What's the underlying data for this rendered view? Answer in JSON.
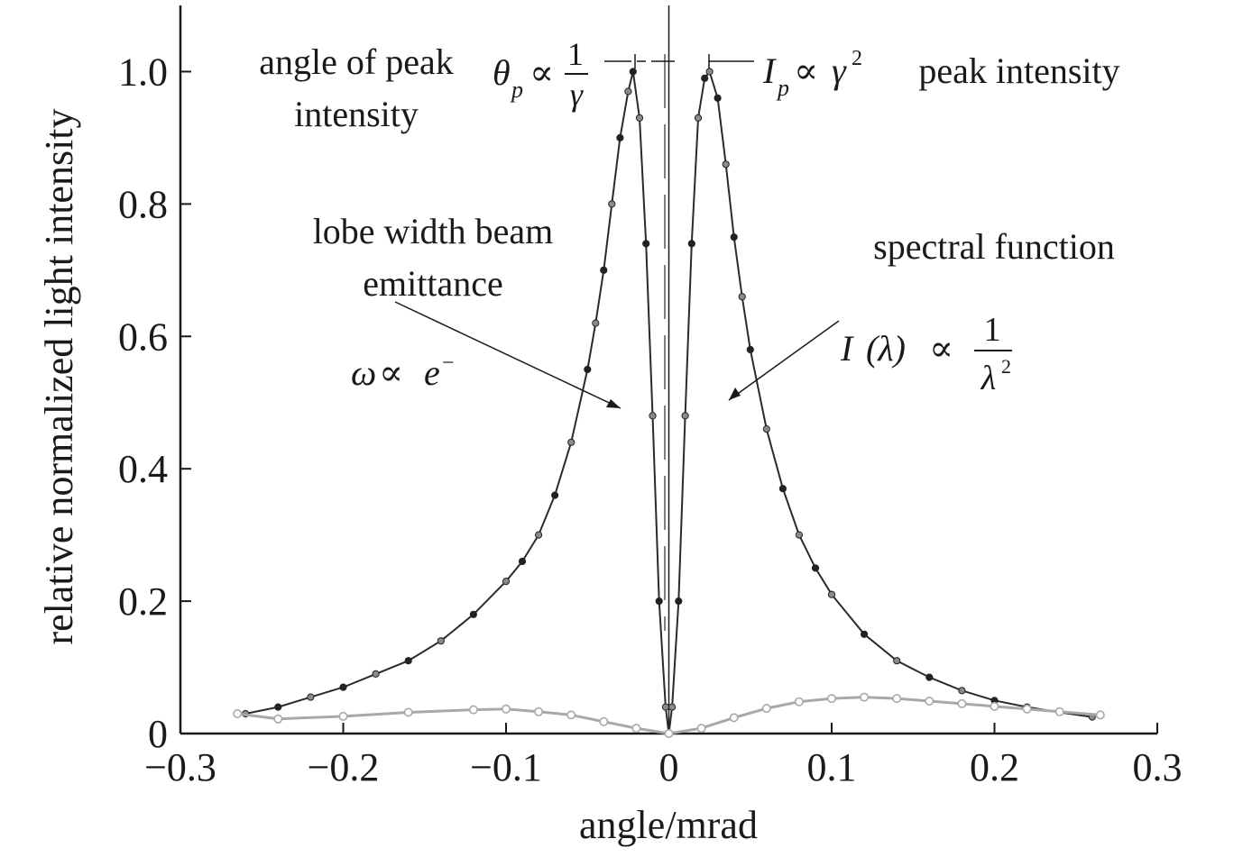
{
  "chart_data": {
    "type": "scatter",
    "xlabel": "angle/mrad",
    "ylabel": "relative normalized light intensity",
    "xlim": [
      -0.3,
      0.3
    ],
    "ylim": [
      0,
      1.1
    ],
    "xticks": [
      "−0.3",
      "−0.2",
      "−0.1",
      "0",
      "0.1",
      "0.2",
      "0.3"
    ],
    "xtick_values": [
      -0.3,
      -0.2,
      -0.1,
      0,
      0.1,
      0.2,
      0.3
    ],
    "yticks": [
      "0",
      "0.2",
      "0.4",
      "0.6",
      "0.8",
      "1.0"
    ],
    "ytick_values": [
      0,
      0.2,
      0.4,
      0.6,
      0.8,
      1.0
    ],
    "grid": false,
    "series": [
      {
        "role": "main-lobe",
        "color": "#2a2a2a",
        "x": [
          -0.26,
          -0.24,
          -0.22,
          -0.2,
          -0.18,
          -0.16,
          -0.14,
          -0.12,
          -0.1,
          -0.09,
          -0.08,
          -0.07,
          -0.06,
          -0.05,
          -0.045,
          -0.04,
          -0.035,
          -0.03,
          -0.025,
          -0.022,
          -0.018,
          -0.014,
          -0.01,
          -0.006,
          -0.002,
          0.0,
          0.002,
          0.006,
          0.01,
          0.014,
          0.018,
          0.022,
          0.025,
          0.03,
          0.035,
          0.04,
          0.045,
          0.05,
          0.06,
          0.07,
          0.08,
          0.09,
          0.1,
          0.12,
          0.14,
          0.16,
          0.18,
          0.2,
          0.22,
          0.24,
          0.26
        ],
        "y": [
          0.03,
          0.04,
          0.055,
          0.07,
          0.09,
          0.11,
          0.14,
          0.18,
          0.23,
          0.26,
          0.3,
          0.36,
          0.44,
          0.55,
          0.62,
          0.7,
          0.8,
          0.9,
          0.97,
          1.0,
          0.93,
          0.74,
          0.48,
          0.2,
          0.04,
          0.0,
          0.04,
          0.2,
          0.48,
          0.74,
          0.93,
          0.99,
          1.0,
          0.96,
          0.86,
          0.75,
          0.66,
          0.58,
          0.46,
          0.37,
          0.3,
          0.25,
          0.21,
          0.15,
          0.11,
          0.085,
          0.065,
          0.05,
          0.04,
          0.032,
          0.025
        ]
      },
      {
        "role": "side-band",
        "color": "#a8a8a8",
        "x": [
          -0.265,
          -0.24,
          -0.2,
          -0.16,
          -0.12,
          -0.1,
          -0.08,
          -0.06,
          -0.04,
          -0.02,
          0.0,
          0.02,
          0.04,
          0.06,
          0.08,
          0.1,
          0.12,
          0.14,
          0.16,
          0.18,
          0.2,
          0.22,
          0.24,
          0.265
        ],
        "y": [
          0.03,
          0.022,
          0.026,
          0.032,
          0.036,
          0.037,
          0.033,
          0.028,
          0.018,
          0.008,
          0.0,
          0.008,
          0.024,
          0.038,
          0.048,
          0.053,
          0.055,
          0.053,
          0.049,
          0.045,
          0.041,
          0.037,
          0.033,
          0.028
        ]
      }
    ],
    "annotations": {
      "angle_label_line1": "angle of peak",
      "angle_label_line2": "intensity",
      "theta_symbol": "θ",
      "theta_sub": "p",
      "propto": "∝",
      "one": "1",
      "gamma": "γ",
      "i_symbol": "I",
      "i_sub": "p",
      "gamma_sq": "γ",
      "sq": "2",
      "peak_label": "peak intensity",
      "lobe_label_line1": "lobe width beam",
      "lobe_label_line2": "emittance",
      "omega": "ω",
      "e_symbol": "e",
      "e_sup": "−",
      "spectral_label": "spectral function",
      "i_lambda": "I",
      "lambda_paren": "(λ)",
      "lambda": "λ"
    }
  }
}
